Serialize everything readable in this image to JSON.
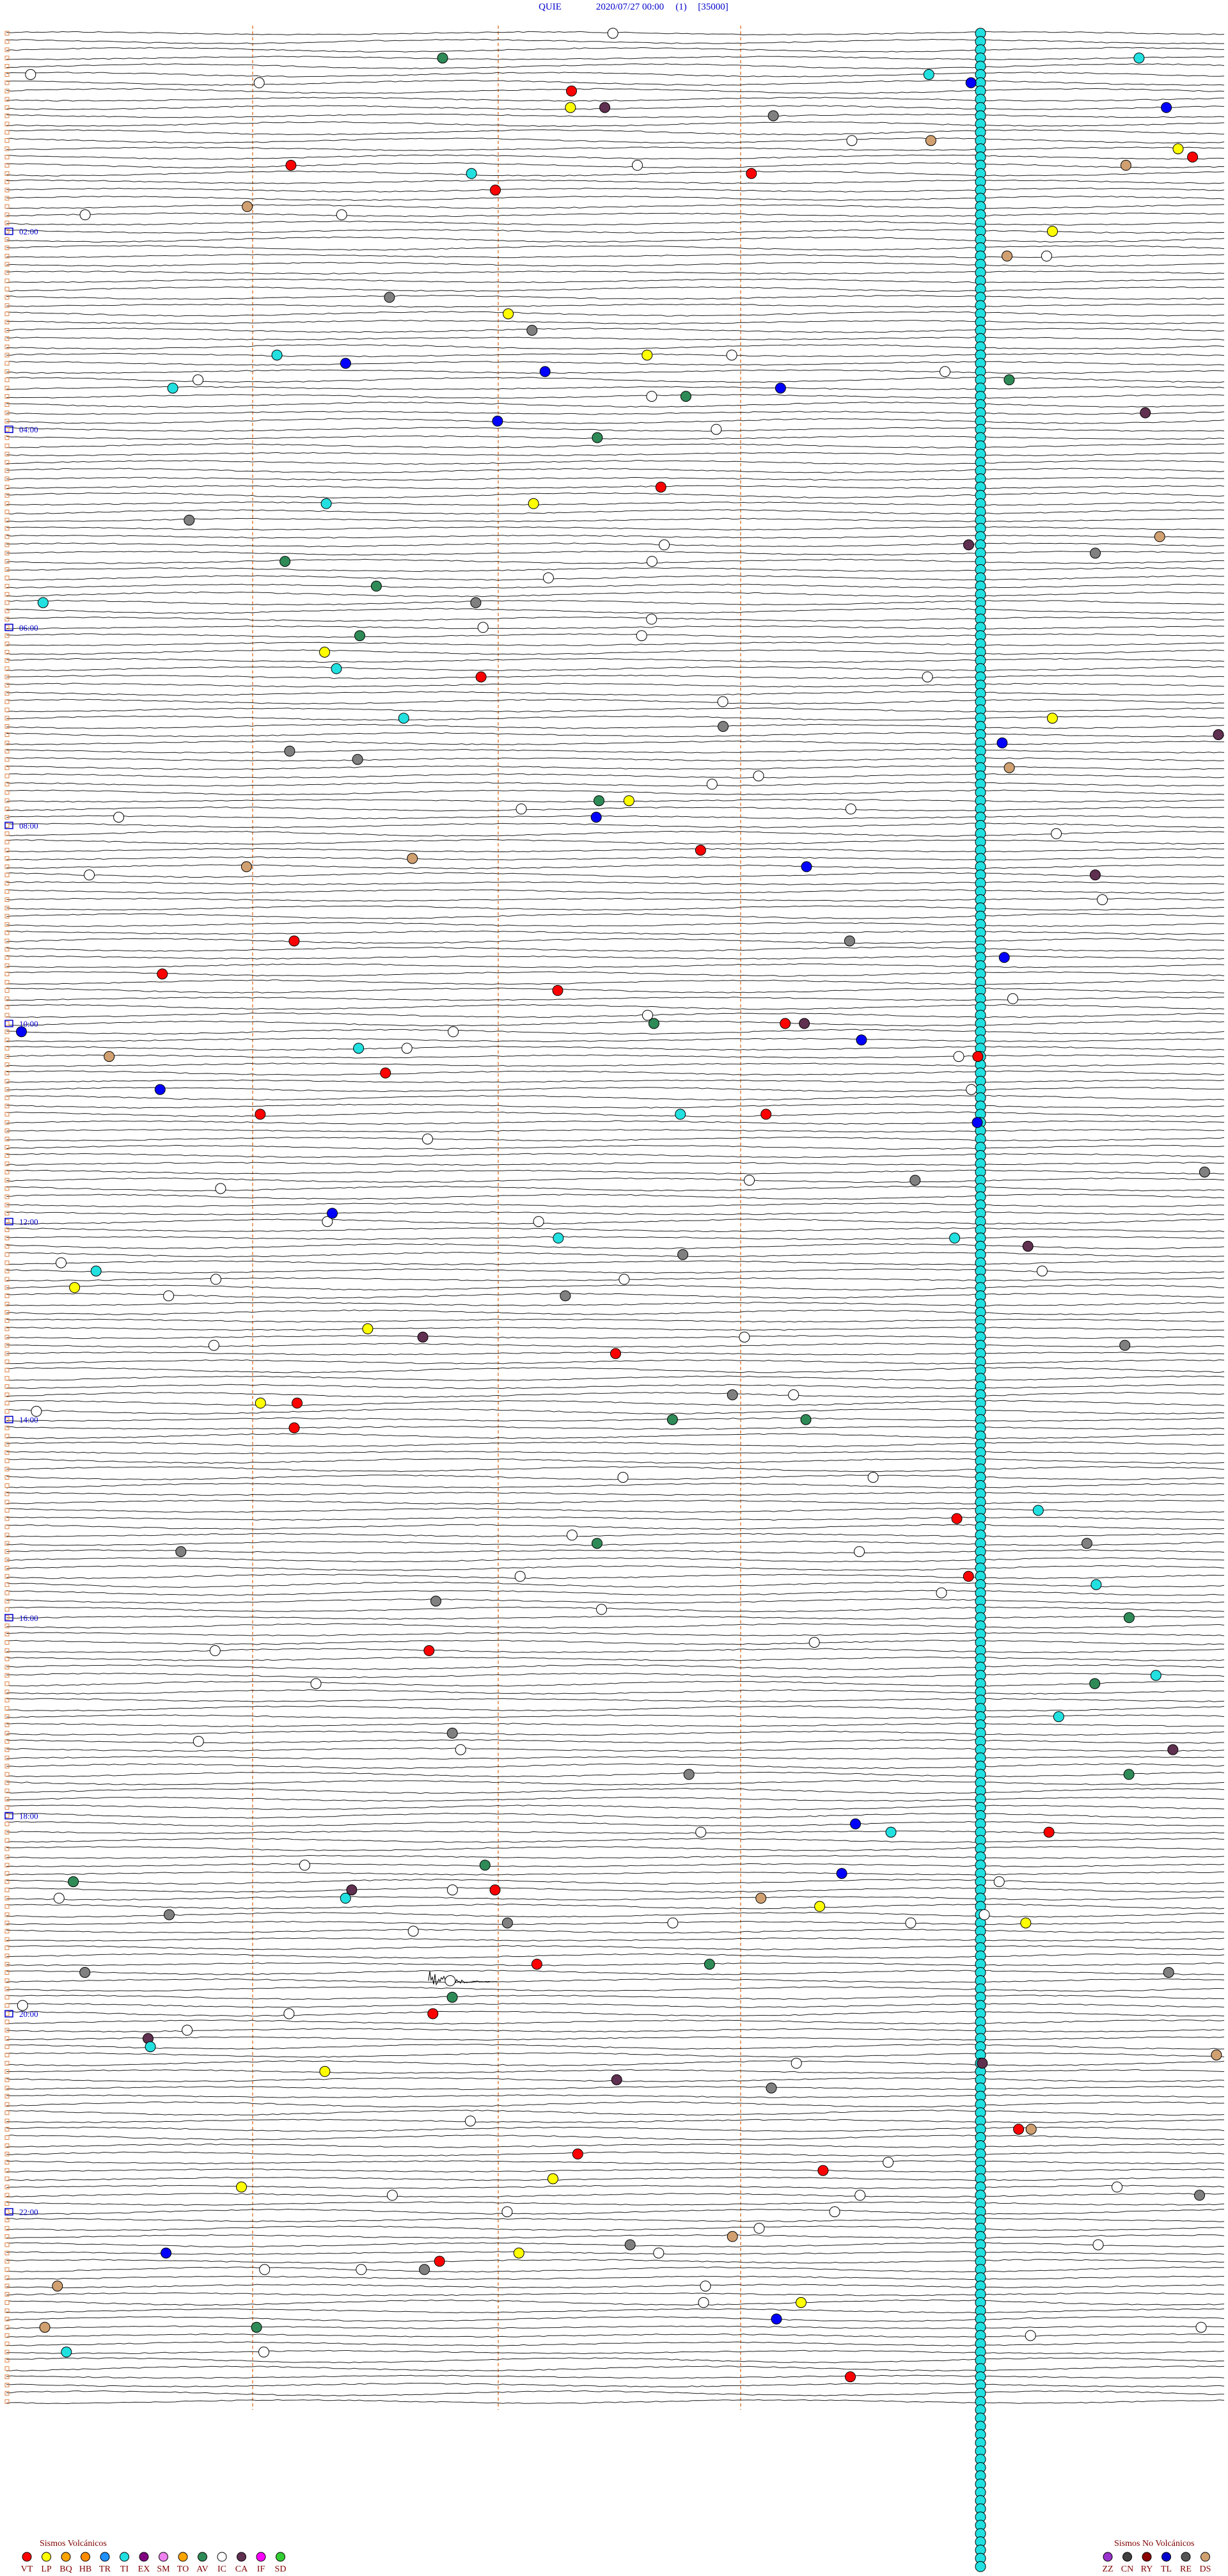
{
  "header": {
    "station": "QUIE",
    "datetime": "2020/07/27 00:00",
    "channel": "(1)",
    "scale": "[35000]"
  },
  "time_labels": [
    "02:00",
    "04:00",
    "06:00",
    "08:00",
    "10:00",
    "12:00",
    "14:00",
    "16:00",
    "18:00",
    "20:00",
    "22:00"
  ],
  "legend_volcanic": {
    "title": "Sismos Volcánicos",
    "codes": [
      "VT",
      "LP",
      "BQ",
      "HB",
      "TR",
      "TI",
      "EX",
      "SM",
      "TO",
      "AV",
      "IC",
      "CA",
      "IF",
      "SD"
    ]
  },
  "legend_non_volcanic": {
    "title": "Sismos No Volcánicos",
    "codes": [
      "ZZ",
      "CN",
      "RY",
      "TL",
      "RE",
      "DS"
    ]
  }
}
